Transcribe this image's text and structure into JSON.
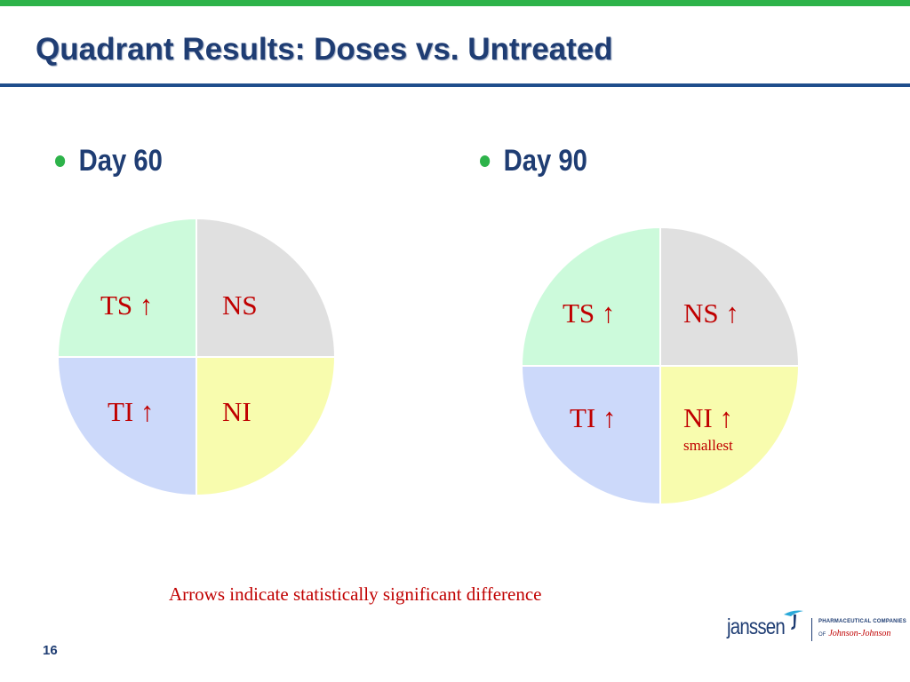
{
  "slide": {
    "title": "Quadrant Results: Doses vs. Untreated",
    "page_number": "16",
    "footnote": "Arrows indicate statistically significant difference",
    "colors": {
      "top_bar": "#2db34a",
      "title": "#1f3d73",
      "rule": "#1f4e8c",
      "label": "#c00000",
      "quadrant_ts": "#ccfadb",
      "quadrant_ns": "#e0e0e0",
      "quadrant_ti": "#ccd9fa",
      "quadrant_ni": "#f8fcae"
    }
  },
  "panels": [
    {
      "heading": "Day 60",
      "quadrants": {
        "ts": "TS ↑",
        "ns": "NS",
        "ti": "TI ↑",
        "ni": "NI"
      }
    },
    {
      "heading": "Day 90",
      "quadrants": {
        "ts": "TS ↑",
        "ns": "NS ↑",
        "ti": "TI ↑",
        "ni": "NI ↑"
      },
      "ni_note": "smallest"
    }
  ],
  "logo": {
    "wordmark": "janssen",
    "line1": "PHARMACEUTICAL COMPANIES",
    "line2_prefix": "OF",
    "line2": "Johnson-Johnson",
    "icon": "janssen-swoosh-icon"
  }
}
